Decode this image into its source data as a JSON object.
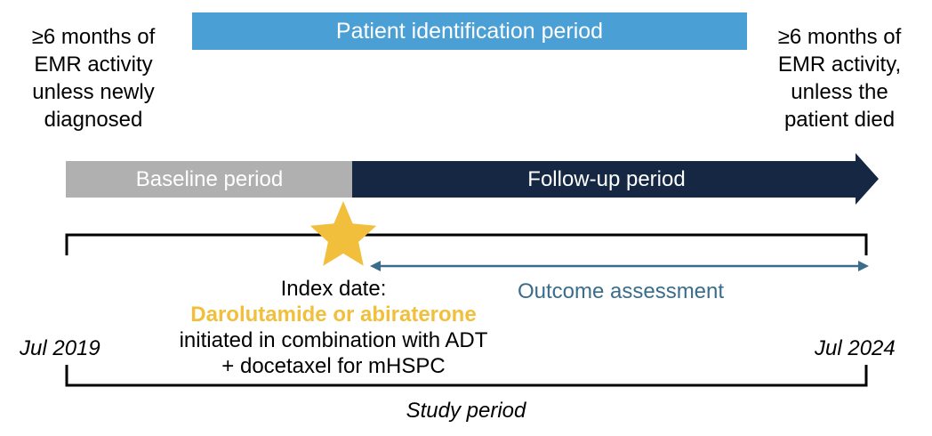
{
  "patient_identification_period": "Patient identification period",
  "left_note": [
    "≥6 months of",
    "EMR activity",
    "unless newly",
    "diagnosed"
  ],
  "right_note": [
    "≥6 months of",
    "EMR activity,",
    "unless the",
    "patient died"
  ],
  "baseline_period": "Baseline period",
  "followup_period": "Follow-up period",
  "outcome_assessment": "Outcome assessment",
  "index_date": {
    "heading": "Index date:",
    "drug": "Darolutamide or abiraterone",
    "line2": "initiated in combination with ADT",
    "line3": "+ docetaxel for mHSPC"
  },
  "date_start": "Jul 2019",
  "date_end": "Jul 2024",
  "study_period": "Study period",
  "colors": {
    "identification": "#4a9fd5",
    "baseline": "#b0b0b0",
    "followup": "#162743",
    "star": "#f2bf3c",
    "outcome": "#3a6d8c"
  }
}
